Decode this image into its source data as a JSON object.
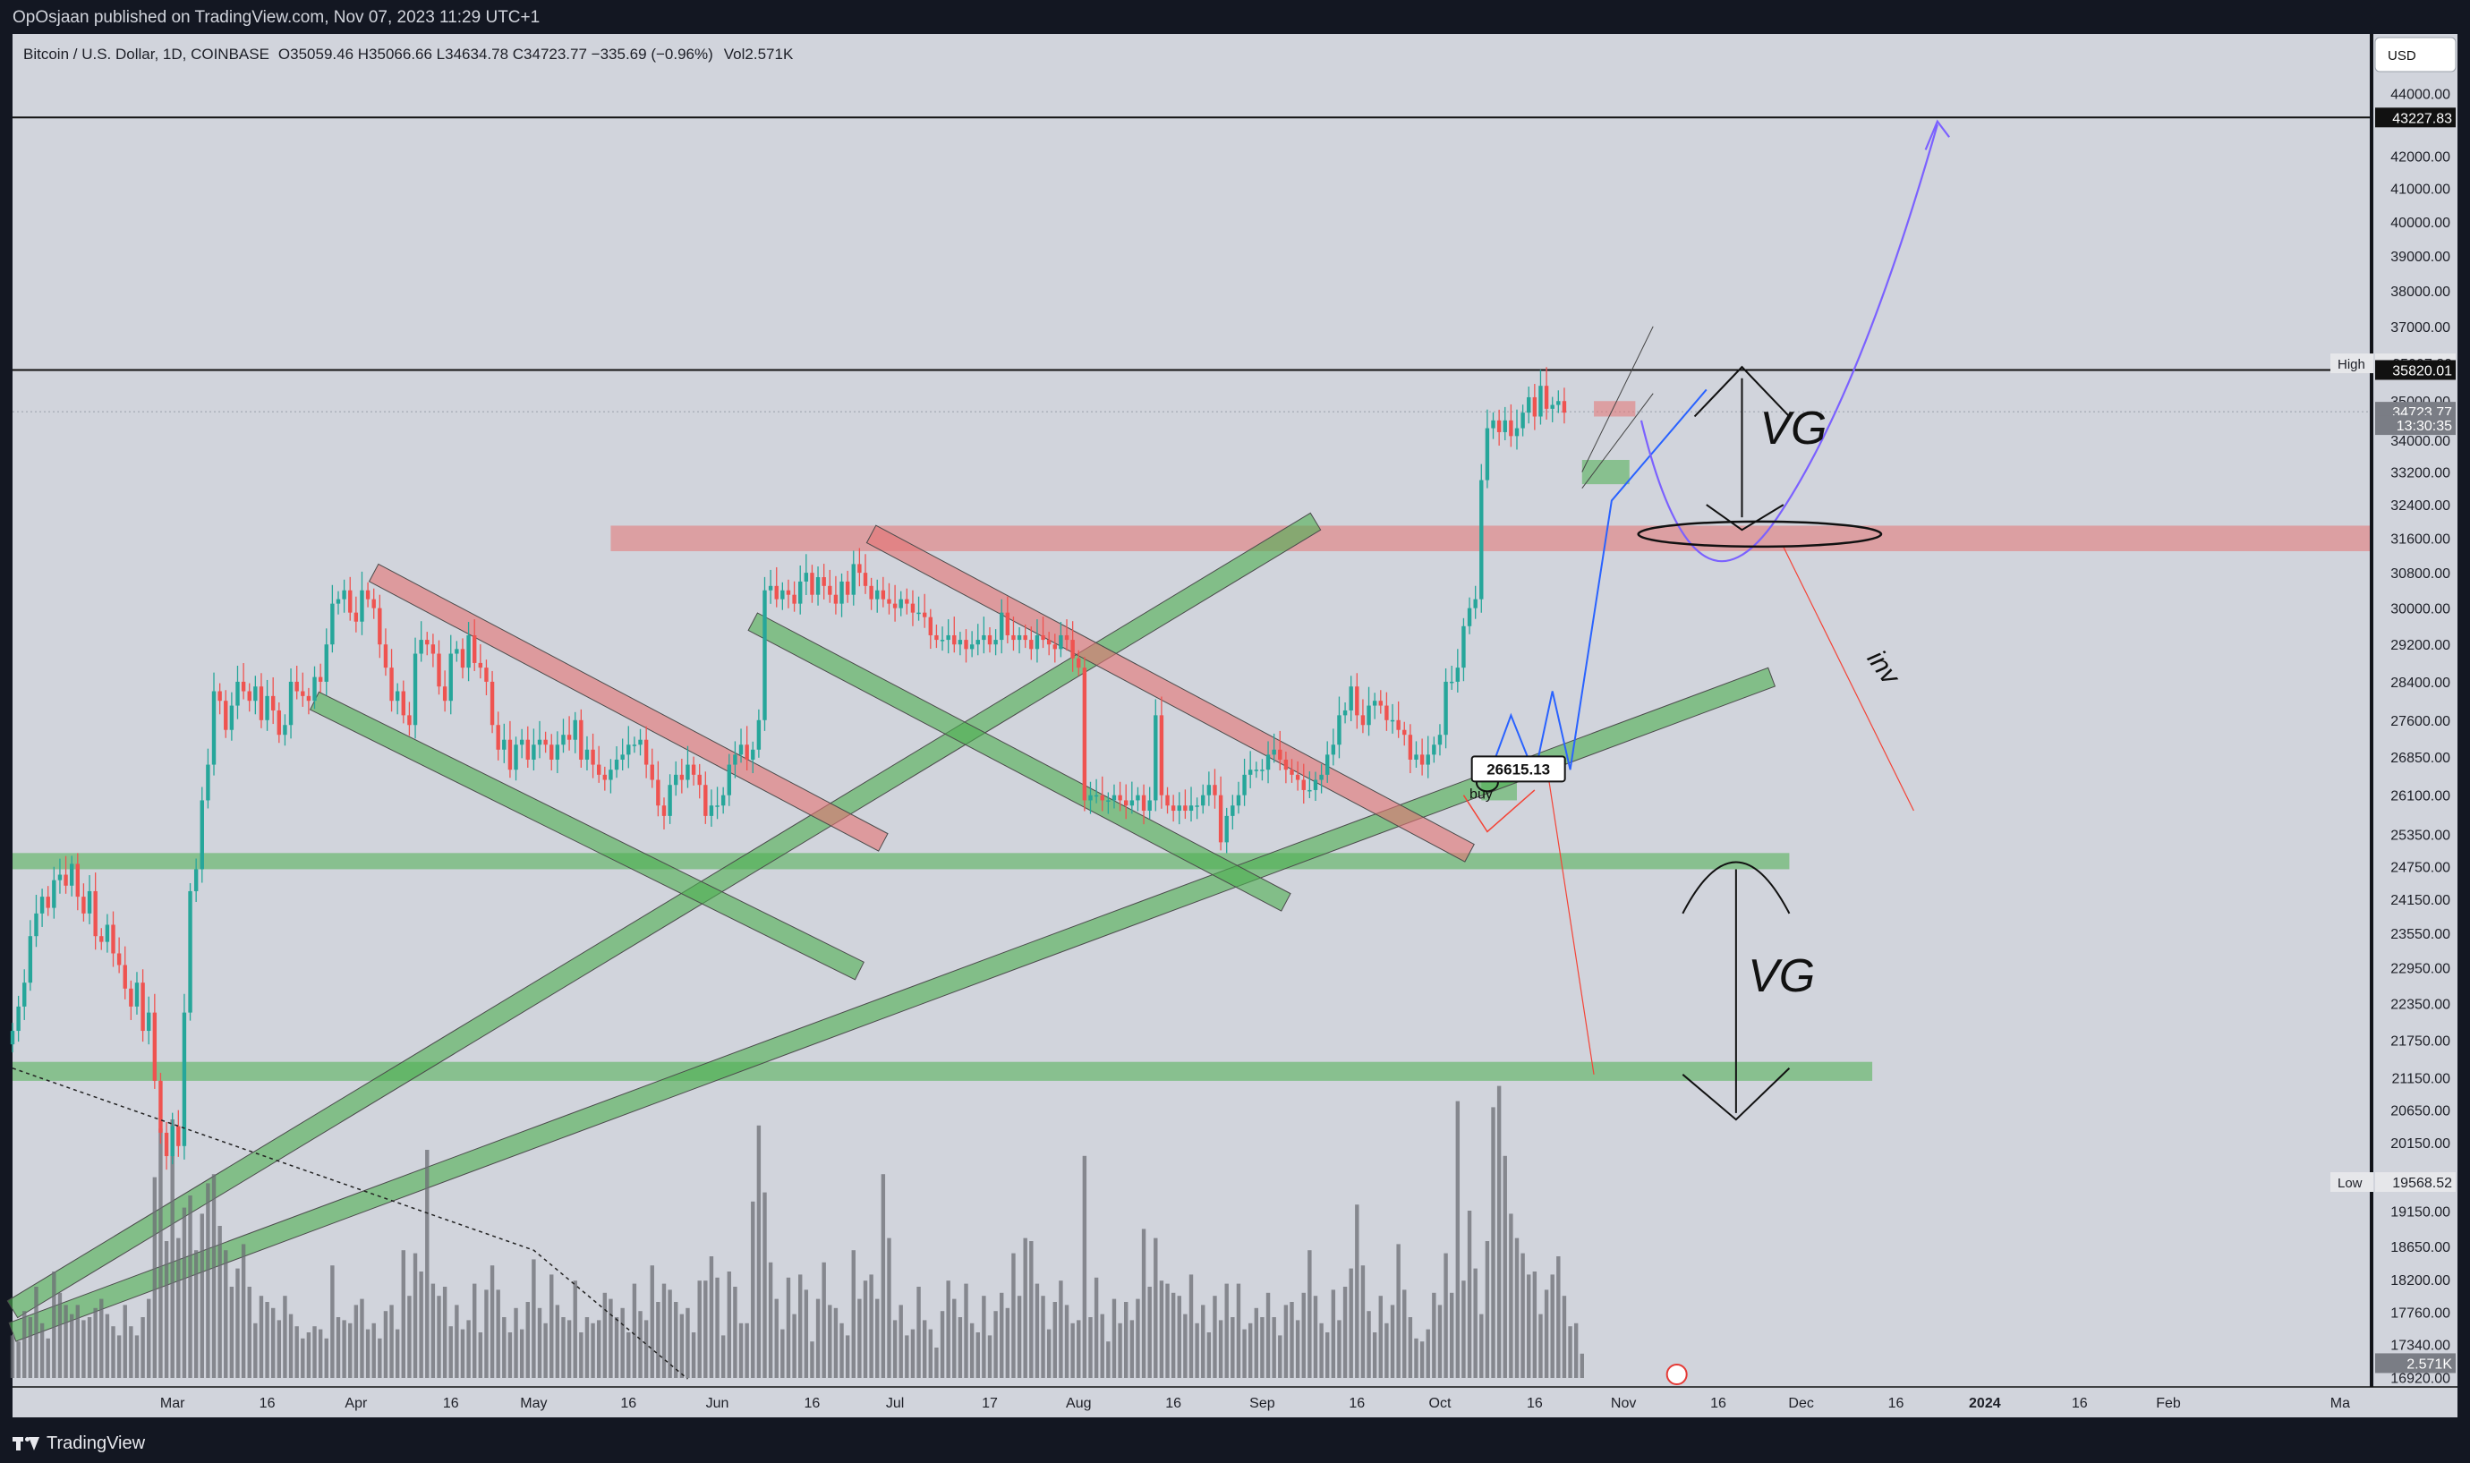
{
  "publisher_line": "OpOsjaan published on TradingView.com, Nov 07, 2023 11:29 UTC+1",
  "brand": "TradingView",
  "currency_button": "USD",
  "colors": {
    "plot_bg": "#d1d4dc",
    "up": "#26a69a",
    "down": "#ef5350",
    "green_zone": "#4caf50",
    "red_zone": "#e57373",
    "volume": "#6b6d74",
    "projection_blue": "#2962ff",
    "projection_purple": "#7b61ff",
    "projection_red": "#f44336"
  },
  "chart_data": {
    "type": "candlestick",
    "title": "Bitcoin / U.S. Dollar, 1D, COINBASE",
    "ohlc_text": "O35059.46  H35066.66  L34634.78  C34723.77  −335.69 (−0.96%)",
    "volume_text": "Vol2.571K",
    "last": {
      "open": 35059.46,
      "high": 35066.66,
      "low": 34634.78,
      "close": 34723.77,
      "change": -335.69,
      "change_pct": -0.96,
      "volume": "2.571K"
    },
    "x_tick_labels": [
      "Mar",
      "16",
      "Apr",
      "16",
      "May",
      "16",
      "Jun",
      "16",
      "Jul",
      "17",
      "Aug",
      "16",
      "Sep",
      "16",
      "Oct",
      "16",
      "Nov",
      "16",
      "Dec",
      "16",
      "2024",
      "16",
      "Feb",
      "Ma"
    ],
    "x_tick_days": [
      59,
      75,
      90,
      106,
      120,
      136,
      151,
      167,
      181,
      197,
      212,
      228,
      243,
      259,
      273,
      289,
      304,
      320,
      334,
      350,
      365,
      381,
      396,
      425
    ],
    "x_range_days": [
      32,
      430
    ],
    "y_tick_labels": [
      "44000.00",
      "42000.00",
      "41000.00",
      "40000.00",
      "39000.00",
      "38000.00",
      "37000.00",
      "35000.00",
      "34000.00",
      "33200.00",
      "32400.00",
      "31600.00",
      "30800.00",
      "30000.00",
      "29200.00",
      "28400.00",
      "27600.00",
      "26850.00",
      "26100.00",
      "25350.00",
      "24750.00",
      "24150.00",
      "23550.00",
      "22950.00",
      "22350.00",
      "21750.00",
      "21150.00",
      "20650.00",
      "20150.00",
      "19150.00",
      "18650.00",
      "18200.00",
      "17760.00",
      "17340.00",
      "16920.00"
    ],
    "y_scale": "log",
    "y_range": [
      16800,
      46000
    ],
    "price_markers": [
      {
        "label": "",
        "value": "43227.83",
        "price": 43227.83,
        "style": "dark"
      },
      {
        "label": "High",
        "value": "35997.80",
        "price": 35997.8,
        "style": "light"
      },
      {
        "label": "",
        "value": "35820.01",
        "price": 35820.01,
        "style": "dark"
      },
      {
        "label": "",
        "value": "34723.77",
        "price": 34723.77,
        "style": "grey"
      },
      {
        "label": "",
        "value": "13:30:35",
        "price": 34380,
        "style": "grey"
      },
      {
        "label": "Low",
        "value": "19568.52",
        "price": 19568.52,
        "style": "light"
      },
      {
        "label": "",
        "value": "2.571K",
        "price": 17100,
        "style": "grey"
      }
    ],
    "horizontal_lines": [
      43227.83,
      35820.01
    ],
    "current_price_line": 34723.77,
    "bar_start_day": 32,
    "closes": [
      21900,
      22300,
      22700,
      23500,
      23900,
      24200,
      24000,
      24500,
      24600,
      24400,
      24800,
      24200,
      23900,
      24300,
      23500,
      23400,
      23700,
      23200,
      23000,
      22600,
      22300,
      22700,
      21900,
      22200,
      21100,
      20300,
      19950,
      20400,
      20100,
      22200,
      24300,
      24700,
      26000,
      26700,
      28200,
      28000,
      27400,
      27900,
      28400,
      28200,
      28000,
      28300,
      27600,
      28100,
      27800,
      27300,
      27500,
      28400,
      28200,
      28100,
      28000,
      28500,
      28400,
      29200,
      30100,
      30200,
      30400,
      29900,
      29700,
      30400,
      30200,
      30000,
      29200,
      28700,
      28000,
      28200,
      27700,
      27500,
      29000,
      29300,
      29200,
      29000,
      28300,
      28000,
      29000,
      29100,
      28700,
      29400,
      28800,
      28700,
      28400,
      27500,
      27000,
      27200,
      26600,
      27100,
      27200,
      26800,
      27100,
      27200,
      27100,
      26800,
      27100,
      27300,
      27200,
      27600,
      26800,
      27000,
      26700,
      26500,
      26400,
      26600,
      26800,
      26900,
      27100,
      27100,
      27200,
      26700,
      26400,
      25900,
      25700,
      26300,
      26500,
      26400,
      26700,
      26500,
      26300,
      25700,
      25900,
      25900,
      26100,
      26700,
      26900,
      27100,
      26800,
      27000,
      27600,
      30400,
      30500,
      30200,
      30400,
      30300,
      30100,
      30600,
      30800,
      30300,
      30700,
      30500,
      30300,
      30100,
      30600,
      30300,
      31000,
      30800,
      30500,
      30200,
      30400,
      30200,
      30100,
      30000,
      30200,
      30100,
      29900,
      29900,
      29800,
      29400,
      29300,
      29300,
      29400,
      29200,
      29300,
      29100,
      29200,
      29300,
      29400,
      29200,
      29300,
      29900,
      29400,
      29300,
      29400,
      29300,
      29100,
      29400,
      29300,
      29200,
      29100,
      29400,
      29300,
      28900,
      28700,
      26000,
      26100,
      26100,
      26000,
      26000,
      26100,
      26000,
      25900,
      26000,
      26100,
      25800,
      26000,
      27700,
      26100,
      25900,
      25800,
      25900,
      25800,
      25900,
      25900,
      26100,
      26300,
      26100,
      25200,
      25700,
      25900,
      26100,
      26500,
      26600,
      26600,
      26600,
      26900,
      27000,
      26800,
      26600,
      26500,
      26400,
      26200,
      26200,
      26400,
      26500,
      26900,
      27100,
      27700,
      27800,
      28300,
      27700,
      27500,
      27900,
      28000,
      27900,
      27600,
      27600,
      27400,
      27300,
      26800,
      26900,
      26700,
      26900,
      27100,
      27300,
      28400,
      28400,
      28700,
      29600,
      30000,
      30200,
      33000,
      34300,
      34500,
      34200,
      34500,
      34100,
      34300,
      34700,
      35100,
      34600,
      35400,
      34800,
      34900,
      35000,
      34700
    ],
    "volumes": [
      0.14,
      0.12,
      0.22,
      0.2,
      0.3,
      0.18,
      0.13,
      0.35,
      0.28,
      0.24,
      0.21,
      0.24,
      0.19,
      0.2,
      0.23,
      0.26,
      0.21,
      0.17,
      0.14,
      0.24,
      0.17,
      0.14,
      0.2,
      0.26,
      0.66,
      0.82,
      0.45,
      0.85,
      0.46,
      0.56,
      0.6,
      0.42,
      0.54,
      0.64,
      0.67,
      0.5,
      0.42,
      0.3,
      0.36,
      0.44,
      0.3,
      0.18,
      0.27,
      0.25,
      0.23,
      0.19,
      0.27,
      0.21,
      0.17,
      0.13,
      0.15,
      0.17,
      0.16,
      0.13,
      0.37,
      0.2,
      0.19,
      0.18,
      0.24,
      0.26,
      0.16,
      0.18,
      0.13,
      0.22,
      0.24,
      0.16,
      0.42,
      0.27,
      0.41,
      0.35,
      0.75,
      0.31,
      0.27,
      0.3,
      0.17,
      0.24,
      0.16,
      0.19,
      0.31,
      0.15,
      0.29,
      0.37,
      0.29,
      0.2,
      0.15,
      0.23,
      0.16,
      0.25,
      0.39,
      0.23,
      0.18,
      0.34,
      0.24,
      0.2,
      0.19,
      0.32,
      0.15,
      0.2,
      0.18,
      0.19,
      0.28,
      0.26,
      0.2,
      0.23,
      0.15,
      0.31,
      0.22,
      0.19,
      0.37,
      0.25,
      0.31,
      0.29,
      0.25,
      0.21,
      0.23,
      0.15,
      0.32,
      0.32,
      0.4,
      0.33,
      0.14,
      0.35,
      0.3,
      0.18,
      0.18,
      0.58,
      0.83,
      0.61,
      0.38,
      0.26,
      0.16,
      0.33,
      0.21,
      0.34,
      0.29,
      0.12,
      0.26,
      0.38,
      0.24,
      0.23,
      0.18,
      0.14,
      0.42,
      0.26,
      0.32,
      0.34,
      0.26,
      0.67,
      0.46,
      0.19,
      0.24,
      0.14,
      0.16,
      0.3,
      0.19,
      0.16,
      0.1,
      0.22,
      0.32,
      0.26,
      0.2,
      0.31,
      0.18,
      0.15,
      0.27,
      0.14,
      0.22,
      0.28,
      0.23,
      0.41,
      0.27,
      0.46,
      0.45,
      0.31,
      0.27,
      0.16,
      0.25,
      0.32,
      0.24,
      0.18,
      0.19,
      0.73,
      0.2,
      0.33,
      0.21,
      0.12,
      0.26,
      0.18,
      0.25,
      0.19,
      0.26,
      0.49,
      0.3,
      0.46,
      0.32,
      0.31,
      0.28,
      0.27,
      0.21,
      0.34,
      0.18,
      0.24,
      0.15,
      0.27,
      0.19,
      0.31,
      0.2,
      0.31,
      0.16,
      0.18,
      0.23,
      0.2,
      0.28,
      0.2,
      0.14,
      0.24,
      0.25,
      0.19,
      0.28,
      0.42,
      0.27,
      0.18,
      0.15,
      0.29,
      0.19,
      0.3,
      0.36,
      0.57,
      0.37,
      0.22,
      0.15,
      0.27,
      0.18,
      0.24,
      0.44,
      0.29,
      0.2,
      0.13,
      0.12,
      0.16,
      0.28,
      0.24,
      0.41,
      0.28,
      0.91,
      0.32,
      0.55,
      0.36,
      0.21,
      0.45,
      0.89,
      0.96,
      0.73,
      0.54,
      0.46,
      0.41,
      0.34,
      0.35,
      0.21,
      0.29,
      0.34,
      0.4,
      0.27,
      0.17,
      0.18,
      0.08
    ],
    "annotations": [
      {
        "type": "price_label",
        "text": "26615.13",
        "day": 279,
        "price": 26615.13
      },
      {
        "type": "text",
        "text": "buy",
        "day": 278,
        "price": 26030
      },
      {
        "type": "handwritten",
        "text": "VG",
        "day": 327,
        "price": 33900
      },
      {
        "type": "handwritten",
        "text": "VG",
        "day": 325,
        "price": 22550
      },
      {
        "type": "handwritten",
        "text": "inv",
        "day": 345,
        "price": 28900
      }
    ]
  }
}
